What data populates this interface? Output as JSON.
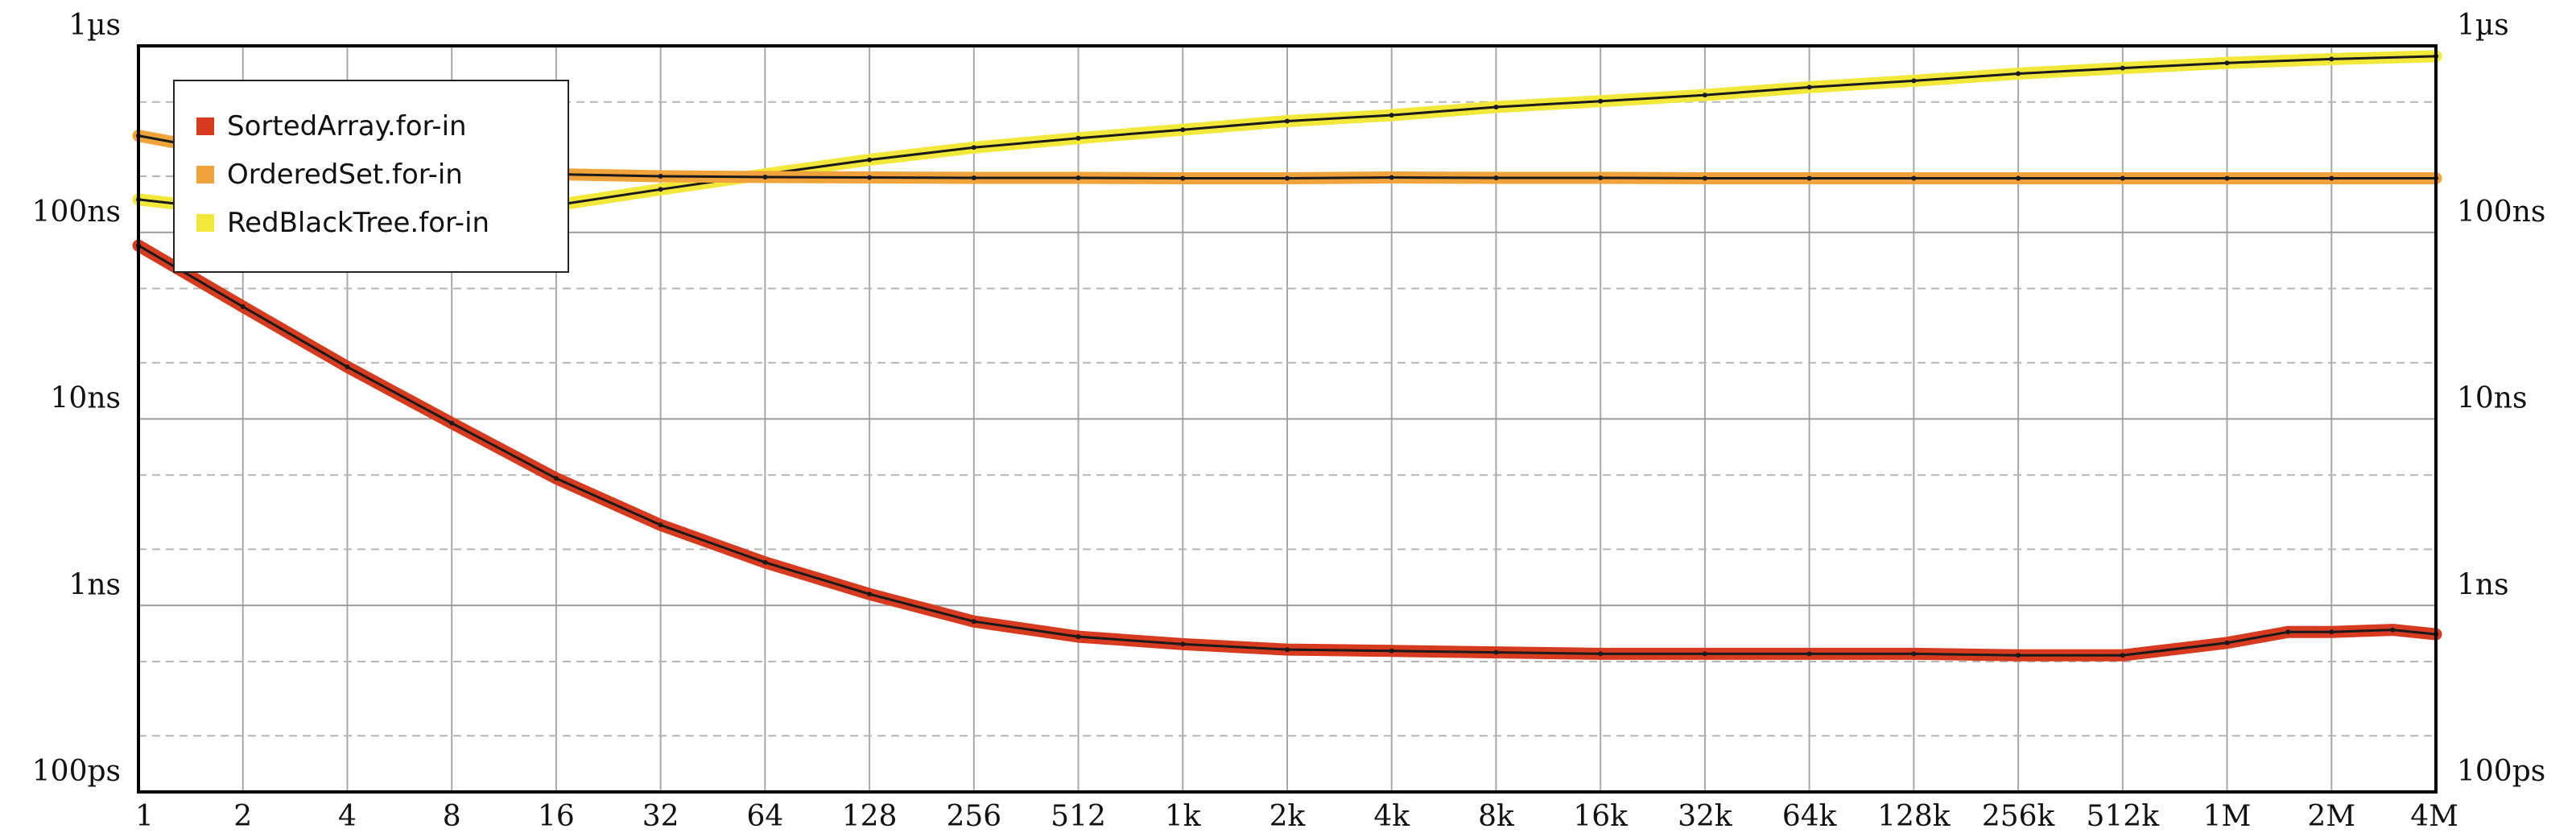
{
  "chart_data": {
    "type": "line",
    "title": "",
    "xlabel": "",
    "ylabel": "",
    "x_scale": "log2",
    "y_scale": "log10",
    "xlim": [
      1,
      4194304
    ],
    "ylim": [
      "100ps",
      "1µs"
    ],
    "grid": true,
    "legend_position": "top-left",
    "x_ticks": [
      "1",
      "2",
      "4",
      "8",
      "16",
      "32",
      "64",
      "128",
      "256",
      "512",
      "1k",
      "2k",
      "4k",
      "8k",
      "16k",
      "32k",
      "64k",
      "128k",
      "256k",
      "512k",
      "1M",
      "2M",
      "4M"
    ],
    "y_ticks": [
      "100ps",
      "1ns",
      "10ns",
      "100ns",
      "1µs"
    ],
    "series": [
      {
        "name": "SortedArray.for-in",
        "color": "#d63b1f",
        "x": [
          "1",
          "2",
          "4",
          "8",
          "16",
          "32",
          "64",
          "128",
          "256",
          "512",
          "1k",
          "2k",
          "4k",
          "8k",
          "16k",
          "32k",
          "64k",
          "128k",
          "256k",
          "512k",
          "1M",
          "1.5M",
          "2M",
          "3M",
          "4M"
        ],
        "values_ns": [
          85,
          40,
          19,
          9.5,
          4.8,
          2.7,
          1.7,
          1.15,
          0.82,
          0.68,
          0.62,
          0.58,
          0.57,
          0.56,
          0.55,
          0.55,
          0.55,
          0.55,
          0.54,
          0.54,
          0.63,
          0.72,
          0.72,
          0.74,
          0.7
        ]
      },
      {
        "name": "OrderedSet.for-in",
        "color": "#f0a33a",
        "x": [
          "1",
          "2",
          "4",
          "8",
          "16",
          "32",
          "64",
          "128",
          "256",
          "512",
          "1k",
          "2k",
          "4k",
          "8k",
          "16k",
          "32k",
          "64k",
          "128k",
          "256k",
          "512k",
          "1M",
          "2M",
          "4M"
        ],
        "values_ns": [
          330,
          260,
          225,
          210,
          205,
          200,
          198,
          197,
          196,
          196,
          195,
          195,
          197,
          196,
          196,
          195,
          195,
          195,
          195,
          195,
          195,
          195,
          195
        ]
      },
      {
        "name": "RedBlackTree.for-in",
        "color": "#f2e83a",
        "x": [
          "1",
          "2",
          "4",
          "8",
          "16",
          "32",
          "64",
          "128",
          "256",
          "512",
          "1k",
          "2k",
          "4k",
          "8k",
          "16k",
          "32k",
          "64k",
          "128k",
          "256k",
          "512k",
          "1M",
          "2M",
          "4M"
        ],
        "values_ns": [
          150,
          130,
          120,
          125,
          140,
          170,
          205,
          245,
          285,
          320,
          355,
          395,
          425,
          470,
          505,
          545,
          600,
          650,
          710,
          760,
          810,
          850,
          880
        ]
      }
    ]
  }
}
